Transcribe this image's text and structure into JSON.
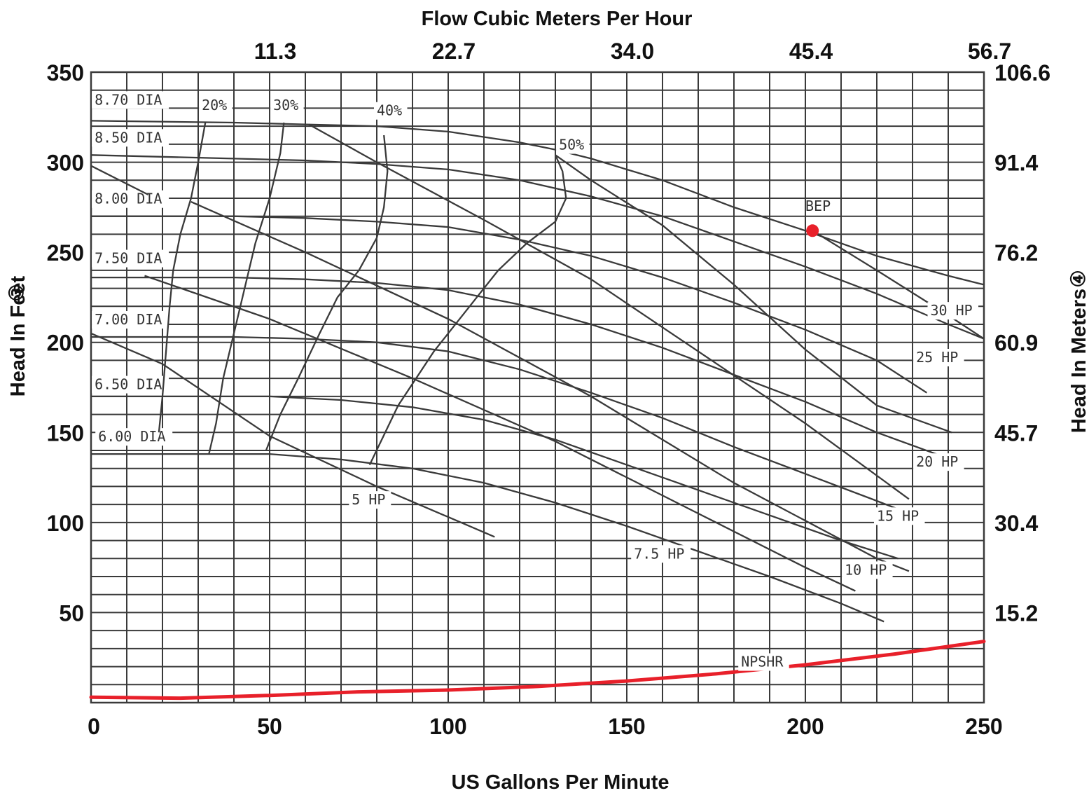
{
  "chart_data": {
    "type": "line",
    "title": "",
    "xlabel": "US Gallons Per Minute",
    "x2label": "Flow Cubic Meters Per Hour",
    "ylabel": "Head In Feet",
    "y2label": "Head In Meters",
    "ylabel_marker": "③",
    "y2label_marker": "④",
    "xlim": [
      0,
      250
    ],
    "ylim": [
      0,
      350
    ],
    "x_ticks": [
      "0",
      "50",
      "100",
      "150",
      "200",
      "250"
    ],
    "x_tick_values": [
      0,
      50,
      100,
      150,
      200,
      250
    ],
    "x2_ticks": [
      "11.3",
      "22.7",
      "34.0",
      "45.4",
      "56.7"
    ],
    "x2_tick_values": [
      50,
      100,
      150,
      200,
      250
    ],
    "y_ticks": [
      "50",
      "100",
      "150",
      "200",
      "250",
      "300",
      "350"
    ],
    "y_tick_values": [
      50,
      100,
      150,
      200,
      250,
      300,
      350
    ],
    "y2_ticks": [
      "15.2",
      "30.4",
      "45.7",
      "60.9",
      "76.2",
      "91.4",
      "106.6"
    ],
    "y2_tick_values": [
      50,
      100,
      150,
      200,
      250,
      300,
      350
    ],
    "grid": true,
    "colors": {
      "grid": "#3a3a3a",
      "curve": "#3a3a3a",
      "npshr": "#e8202a",
      "bep": "#e8202a"
    },
    "diameter_curves": [
      {
        "name": "8.70 DIA",
        "label_at": [
          1,
          332
        ],
        "points": [
          [
            0,
            323
          ],
          [
            40,
            322
          ],
          [
            60,
            321
          ],
          [
            80,
            320
          ],
          [
            100,
            317
          ],
          [
            120,
            311
          ],
          [
            130,
            307
          ],
          [
            140,
            302
          ],
          [
            160,
            290
          ],
          [
            180,
            275
          ],
          [
            200,
            262
          ],
          [
            220,
            248
          ],
          [
            240,
            237
          ],
          [
            250,
            232
          ]
        ]
      },
      {
        "name": "8.50 DIA",
        "label_at": [
          1,
          311
        ],
        "points": [
          [
            0,
            304
          ],
          [
            40,
            302
          ],
          [
            60,
            301
          ],
          [
            80,
            299
          ],
          [
            100,
            296
          ],
          [
            120,
            290
          ],
          [
            140,
            281
          ],
          [
            160,
            270
          ],
          [
            180,
            256
          ],
          [
            200,
            242
          ],
          [
            220,
            227
          ],
          [
            240,
            210
          ],
          [
            250,
            202
          ]
        ]
      },
      {
        "name": "8.00 DIA",
        "label_at": [
          1,
          277
        ],
        "points": [
          [
            0,
            270
          ],
          [
            40,
            270
          ],
          [
            60,
            269
          ],
          [
            80,
            267
          ],
          [
            100,
            264
          ],
          [
            120,
            257
          ],
          [
            140,
            248
          ],
          [
            160,
            236
          ],
          [
            180,
            222
          ],
          [
            200,
            207
          ],
          [
            220,
            190
          ],
          [
            234,
            172
          ]
        ]
      },
      {
        "name": "7.50 DIA",
        "label_at": [
          1,
          244
        ],
        "points": [
          [
            0,
            236
          ],
          [
            40,
            236
          ],
          [
            60,
            235
          ],
          [
            80,
            233
          ],
          [
            100,
            229
          ],
          [
            120,
            221
          ],
          [
            140,
            210
          ],
          [
            160,
            197
          ],
          [
            180,
            182
          ],
          [
            200,
            167
          ],
          [
            220,
            150
          ],
          [
            238,
            137
          ]
        ]
      },
      {
        "name": "7.00 DIA",
        "label_at": [
          1,
          210
        ],
        "points": [
          [
            0,
            203
          ],
          [
            40,
            203
          ],
          [
            60,
            202
          ],
          [
            80,
            200
          ],
          [
            100,
            195
          ],
          [
            120,
            185
          ],
          [
            140,
            172
          ],
          [
            160,
            158
          ],
          [
            180,
            142
          ],
          [
            200,
            127
          ],
          [
            220,
            112
          ],
          [
            233,
            102
          ]
        ]
      },
      {
        "name": "6.50 DIA",
        "label_at": [
          1,
          174
        ],
        "points": [
          [
            0,
            170
          ],
          [
            30,
            170
          ],
          [
            50,
            170
          ],
          [
            70,
            168
          ],
          [
            90,
            164
          ],
          [
            110,
            157
          ],
          [
            130,
            146
          ],
          [
            150,
            132
          ],
          [
            170,
            118
          ],
          [
            190,
            104
          ],
          [
            210,
            90
          ],
          [
            226,
            80
          ]
        ]
      },
      {
        "name": "6.00 DIA",
        "label_at": [
          2,
          145
        ],
        "points": [
          [
            0,
            138
          ],
          [
            30,
            138
          ],
          [
            50,
            138
          ],
          [
            70,
            135
          ],
          [
            90,
            130
          ],
          [
            110,
            122
          ],
          [
            130,
            111
          ],
          [
            150,
            98
          ],
          [
            170,
            84
          ],
          [
            190,
            70
          ],
          [
            210,
            55
          ],
          [
            222,
            45
          ]
        ]
      }
    ],
    "efficiency_curves": [
      {
        "name": "20%",
        "label_at": [
          31,
          329
        ],
        "points": [
          [
            32,
            322
          ],
          [
            30,
            300
          ],
          [
            28,
            280
          ],
          [
            25,
            260
          ],
          [
            23,
            240
          ],
          [
            22,
            220
          ],
          [
            21,
            195
          ],
          [
            20,
            170
          ],
          [
            19,
            150
          ]
        ]
      },
      {
        "name": "30%",
        "label_at": [
          51,
          329
        ],
        "points": [
          [
            54,
            322
          ],
          [
            53,
            305
          ],
          [
            50,
            280
          ],
          [
            46,
            255
          ],
          [
            43,
            230
          ],
          [
            40,
            205
          ],
          [
            37,
            180
          ],
          [
            35,
            155
          ],
          [
            33,
            138
          ]
        ]
      },
      {
        "name": "40%",
        "label_at": [
          80,
          326
        ],
        "points": [
          [
            82,
            315
          ],
          [
            83,
            295
          ],
          [
            82,
            275
          ],
          [
            80,
            258
          ],
          [
            75,
            240
          ],
          [
            69,
            225
          ],
          [
            64,
            205
          ],
          [
            58,
            180
          ],
          [
            53,
            160
          ],
          [
            49,
            140
          ]
        ]
      },
      {
        "name": "50%",
        "label_at": [
          131,
          307
        ],
        "points": [
          [
            130,
            304
          ],
          [
            132,
            295
          ],
          [
            133,
            280
          ],
          [
            130,
            267
          ],
          [
            122,
            255
          ],
          [
            114,
            240
          ],
          [
            106,
            220
          ],
          [
            96,
            195
          ],
          [
            86,
            165
          ],
          [
            78,
            132
          ]
        ]
      }
    ],
    "power_curves": [
      {
        "name": "5 HP",
        "label_at": [
          73,
          110
        ],
        "points": [
          [
            0,
            298
          ],
          [
            16,
            282
          ]
        ],
        "points2": [
          [
            0,
            205
          ],
          [
            20,
            188
          ],
          [
            50,
            148
          ],
          [
            80,
            120
          ],
          [
            113,
            92
          ]
        ]
      },
      {
        "name": "7.5 HP",
        "label_at": [
          152,
          80
        ],
        "points": [
          [
            15,
            237
          ],
          [
            50,
            213
          ],
          [
            90,
            180
          ],
          [
            130,
            145
          ],
          [
            170,
            105
          ],
          [
            200,
            75
          ],
          [
            214,
            62
          ]
        ]
      },
      {
        "name": "10 HP",
        "label_at": [
          211,
          71
        ],
        "points": [
          [
            28,
            278
          ],
          [
            60,
            250
          ],
          [
            100,
            213
          ],
          [
            140,
            170
          ],
          [
            180,
            122
          ],
          [
            220,
            80
          ],
          [
            229,
            73
          ]
        ]
      },
      {
        "name": "15 HP",
        "label_at": [
          220,
          101
        ],
        "points": [
          [
            61,
            321
          ],
          [
            80,
            300
          ],
          [
            110,
            268
          ],
          [
            140,
            235
          ],
          [
            170,
            195
          ],
          [
            200,
            155
          ],
          [
            229,
            113
          ]
        ]
      },
      {
        "name": "20 HP",
        "label_at": [
          231,
          131
        ],
        "points": [
          [
            130,
            304
          ],
          [
            140,
            290
          ],
          [
            160,
            265
          ],
          [
            180,
            232
          ],
          [
            200,
            196
          ],
          [
            220,
            165
          ],
          [
            241,
            150
          ]
        ]
      },
      {
        "name": "25 HP",
        "label_at": [
          231,
          189
        ],
        "points": [
          [
            202,
            262
          ],
          [
            220,
            240
          ],
          [
            240,
            215
          ],
          [
            250,
            202
          ]
        ]
      },
      {
        "name": "30 HP",
        "label_at": [
          235,
          215
        ],
        "points": []
      }
    ],
    "npshr": {
      "name": "NPSHR",
      "label_at": [
        182,
        20
      ],
      "points": [
        [
          0,
          3
        ],
        [
          25,
          2.5
        ],
        [
          50,
          4
        ],
        [
          75,
          6
        ],
        [
          100,
          7
        ],
        [
          125,
          9
        ],
        [
          150,
          12
        ],
        [
          175,
          16
        ],
        [
          200,
          21
        ],
        [
          225,
          27
        ],
        [
          250,
          34
        ]
      ]
    },
    "bep": {
      "name": "BEP",
      "x": 202,
      "y": 262,
      "label_at": [
        200,
        273
      ]
    }
  }
}
